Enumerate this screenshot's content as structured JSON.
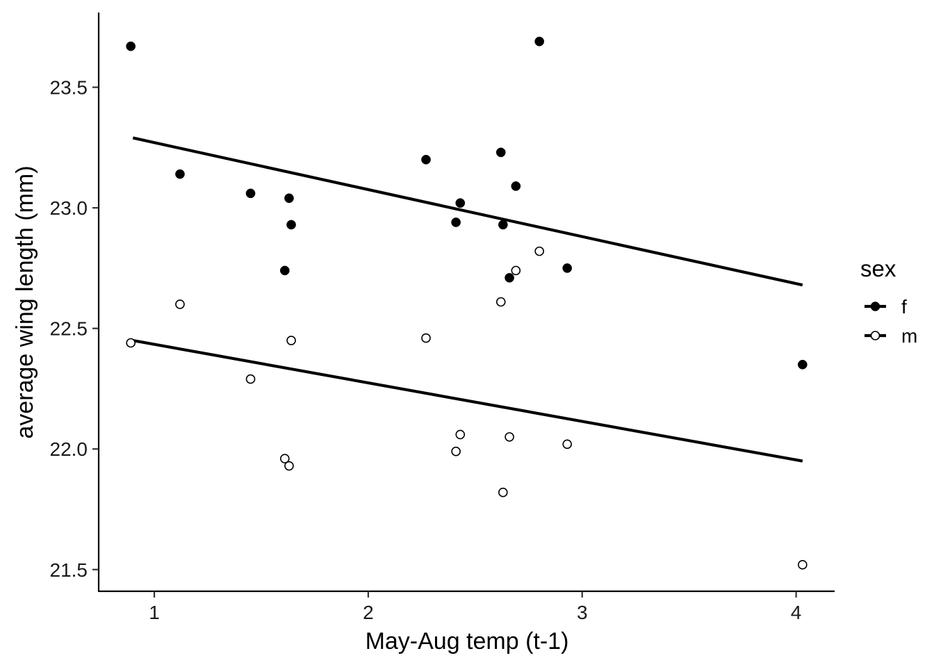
{
  "chart_data": {
    "type": "scatter",
    "title": "",
    "xlabel": "May-Aug temp (t-1)",
    "ylabel": "average wing length (mm)",
    "xlim": [
      0.74,
      4.18
    ],
    "ylim": [
      21.41,
      23.81
    ],
    "xticks": [
      1,
      2,
      3,
      4
    ],
    "xtick_labels": [
      "1",
      "2",
      "3",
      "4"
    ],
    "yticks": [
      21.5,
      22.0,
      22.5,
      23.0,
      23.5
    ],
    "ytick_labels": [
      "21.5",
      "22.0",
      "22.5",
      "23.0",
      "23.5"
    ],
    "grid": false,
    "legend": {
      "title": "sex",
      "position": "right"
    },
    "series": [
      {
        "name": "f",
        "marker": "filled-circle",
        "color": "#000000",
        "x": [
          0.89,
          1.12,
          1.45,
          1.61,
          1.63,
          1.64,
          2.27,
          2.41,
          2.43,
          2.62,
          2.63,
          2.66,
          2.69,
          2.8,
          2.93,
          4.03
        ],
        "y": [
          23.67,
          23.14,
          23.06,
          22.74,
          23.04,
          22.93,
          23.2,
          22.94,
          23.02,
          23.23,
          22.93,
          22.71,
          23.09,
          23.69,
          22.75,
          22.35
        ],
        "fit": {
          "x": [
            0.9,
            4.03
          ],
          "y": [
            23.29,
            22.68
          ]
        }
      },
      {
        "name": "m",
        "marker": "open-circle",
        "color": "#000000",
        "x": [
          0.89,
          1.12,
          1.45,
          1.61,
          1.63,
          1.64,
          2.27,
          2.41,
          2.43,
          2.62,
          2.63,
          2.66,
          2.69,
          2.8,
          2.93,
          4.03
        ],
        "y": [
          22.44,
          22.6,
          22.29,
          21.96,
          21.93,
          22.45,
          22.46,
          21.99,
          22.06,
          22.61,
          21.82,
          22.05,
          22.74,
          22.82,
          22.02,
          21.52
        ],
        "fit": {
          "x": [
            0.9,
            4.03
          ],
          "y": [
            22.45,
            21.95
          ]
        }
      }
    ]
  }
}
